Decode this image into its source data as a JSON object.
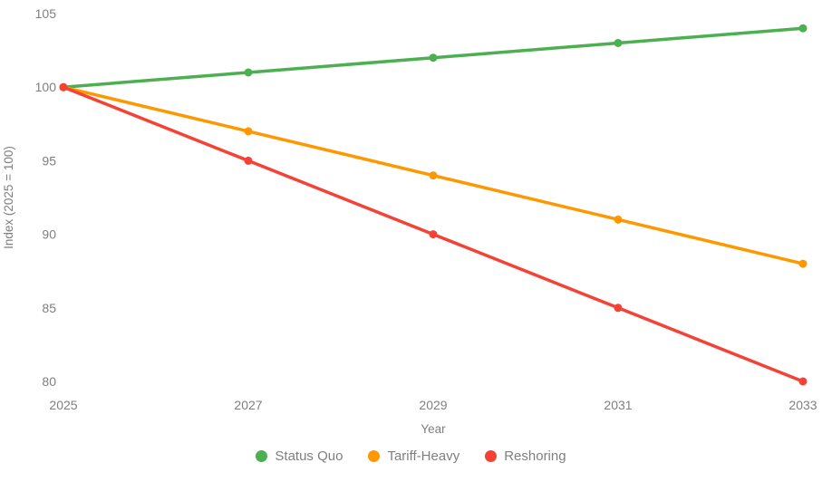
{
  "chart_data": {
    "type": "line",
    "x": [
      2025,
      2027,
      2029,
      2031,
      2033
    ],
    "series": [
      {
        "name": "Status Quo",
        "color": "#4caf50",
        "values": [
          100,
          101,
          102,
          103,
          104
        ]
      },
      {
        "name": "Tariff-Heavy",
        "color": "#ff9800",
        "values": [
          100,
          97,
          94,
          91,
          88
        ]
      },
      {
        "name": "Reshoring",
        "color": "#f44336",
        "values": [
          100,
          95,
          90,
          85,
          80
        ]
      }
    ],
    "xlabel": "Year",
    "ylabel": "Index (2025 = 100)",
    "xticks": [
      2025,
      2027,
      2029,
      2031,
      2033
    ],
    "yticks": [
      80,
      85,
      90,
      95,
      100,
      105
    ],
    "xlim": [
      2025,
      2033
    ],
    "ylim": [
      80,
      105
    ],
    "grid": false,
    "legend_position": "bottom-center",
    "text_color": "#7f7f7f",
    "background_color": "#ffffff"
  }
}
